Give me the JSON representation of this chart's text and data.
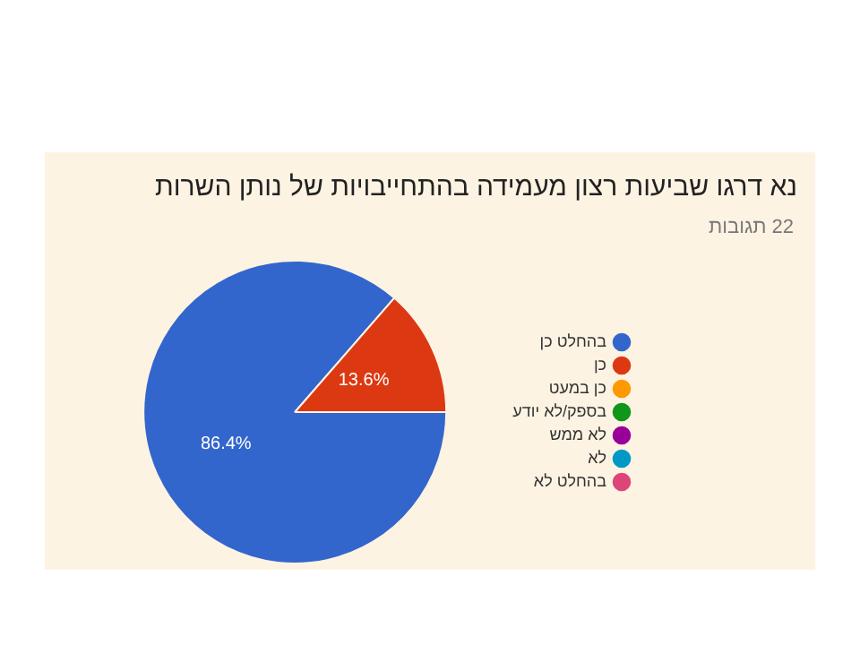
{
  "chart_data": {
    "type": "pie",
    "title": "נא דרגו שביעות רצון מעמידה בהתחייבויות של נותן השרות",
    "subtitle": "22 תגובות",
    "categories": [
      "בהחלט כן",
      "כן",
      "כן במעט",
      "בספק/לא יודע",
      "לא ממש",
      "לא",
      "בהחלט לא"
    ],
    "values": [
      86.4,
      13.6,
      0,
      0,
      0,
      0,
      0
    ],
    "colors": [
      "#3366cc",
      "#dc3912",
      "#ff9900",
      "#109618",
      "#990099",
      "#0099c6",
      "#dd4477"
    ],
    "value_labels": [
      "86.4%",
      "13.6%",
      null,
      null,
      null,
      null,
      null
    ],
    "legend": "right"
  }
}
